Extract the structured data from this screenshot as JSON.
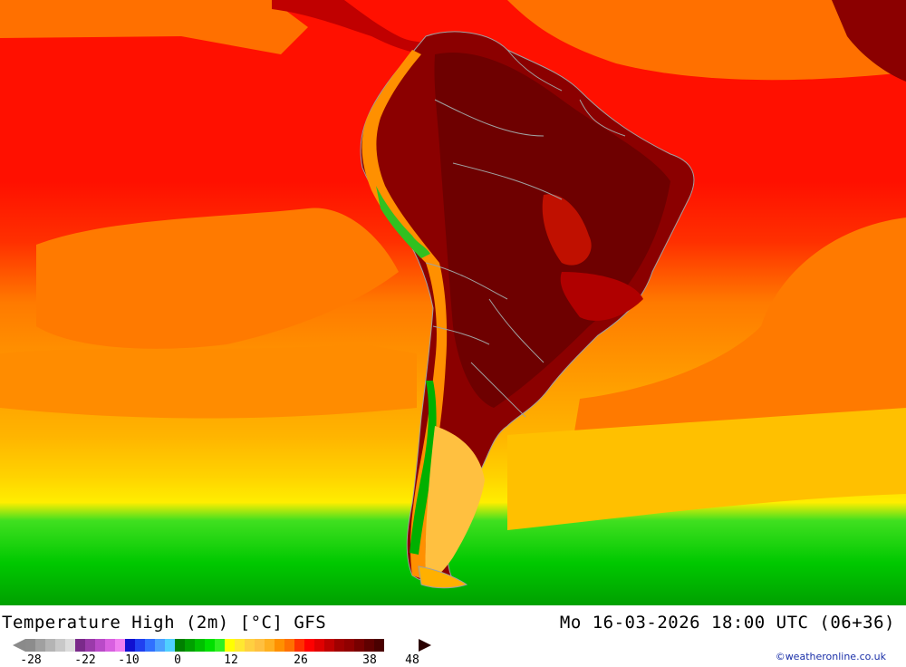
{
  "map": {
    "title": "Temperature High (2m) [°C] GFS",
    "valid_time": "Mo 16-03-2026 18:00 UTC (06+36)",
    "credit": "©weatheronline.co.uk",
    "region": "South America",
    "colors": {
      "ocean_hot": "#ff0000",
      "ocean_warm": "#ff8000",
      "ocean_mild": "#ffb000",
      "ocean_cool": "#ffe000",
      "ocean_cold": "#00d000",
      "land_hot": "#8b0000",
      "land_very_hot": "#6b0000",
      "andes_green": "#00b000",
      "border": "#a0a0a0"
    }
  },
  "legend": {
    "ticks": [
      "-28",
      "-22",
      "-10",
      "0",
      "12",
      "26",
      "38",
      "48"
    ],
    "swatches": [
      "#8c8c8c",
      "#a0a0a0",
      "#b4b4b4",
      "#c8c8c8",
      "#dcdcdc",
      "#7a2a8a",
      "#9a3aaa",
      "#b94ac8",
      "#d860e0",
      "#f080f0",
      "#1010d0",
      "#2040f0",
      "#3070ff",
      "#4aa0ff",
      "#50d0ff",
      "#008000",
      "#00a000",
      "#00c000",
      "#00e000",
      "#30f020",
      "#ffff00",
      "#ffe830",
      "#ffd040",
      "#ffc040",
      "#ffb020",
      "#ff9000",
      "#ff7000",
      "#ff3000",
      "#ff0000",
      "#e00000",
      "#c00000",
      "#a00000",
      "#900000",
      "#780000",
      "#600000",
      "#4a0000"
    ]
  }
}
